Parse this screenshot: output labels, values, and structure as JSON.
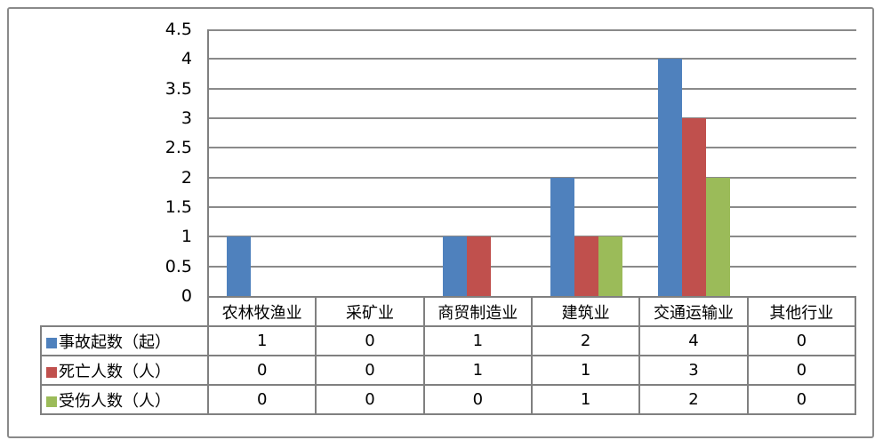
{
  "chart_data": {
    "type": "bar",
    "title": "",
    "categories": [
      "农林牧渔业",
      "采矿业",
      "商贸制造业",
      "建筑业",
      "交通运输业",
      "其他行业"
    ],
    "series": [
      {
        "name": "事故起数（起）",
        "color": "#4F81BD",
        "values": [
          1,
          0,
          1,
          2,
          4,
          0
        ]
      },
      {
        "name": "死亡人数（人）",
        "color": "#C0504D",
        "values": [
          0,
          0,
          1,
          1,
          3,
          0
        ]
      },
      {
        "name": "受伤人数（人）",
        "color": "#9BBB59",
        "values": [
          0,
          0,
          0,
          1,
          2,
          0
        ]
      }
    ],
    "xlabel": "",
    "ylabel": "",
    "ylim": [
      0,
      4.5
    ],
    "ytick_step": 0.5,
    "yticks": [
      "4.5",
      "4",
      "3.5",
      "3",
      "2.5",
      "2",
      "1.5",
      "1",
      "0.5",
      "0"
    ],
    "grid": true,
    "legend_position": "data-table-left",
    "gridline_color": "#8a8a8a",
    "axis_color": "#808080",
    "table_border_color": "#808080",
    "frame_border_color": "#8a8a8a"
  }
}
